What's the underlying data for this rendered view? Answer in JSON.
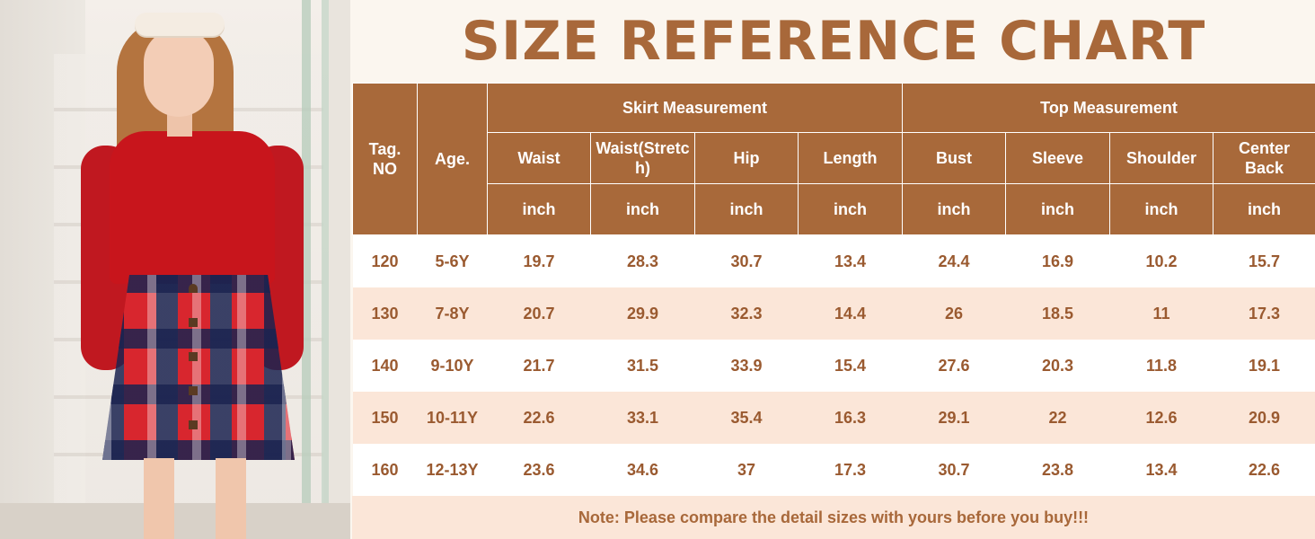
{
  "title": "SIZE REFERENCE CHART",
  "headers": {
    "tag": "Tag. NO",
    "age": "Age.",
    "skirt_group": "Skirt Measurement",
    "top_group": "Top Measurement",
    "waist": "Waist",
    "waist_stretch": "Waist(Stretch)",
    "hip": "Hip",
    "length": "Length",
    "bust": "Bust",
    "sleeve": "Sleeve",
    "shoulder": "Shoulder",
    "center_back": "Center Back",
    "unit": "inch"
  },
  "rows": [
    {
      "tag": "120",
      "age": "5-6Y",
      "waist": "19.7",
      "waist_stretch": "28.3",
      "hip": "30.7",
      "length": "13.4",
      "bust": "24.4",
      "sleeve": "16.9",
      "shoulder": "10.2",
      "center_back": "15.7"
    },
    {
      "tag": "130",
      "age": "7-8Y",
      "waist": "20.7",
      "waist_stretch": "29.9",
      "hip": "32.3",
      "length": "14.4",
      "bust": "26",
      "sleeve": "18.5",
      "shoulder": "11",
      "center_back": "17.3"
    },
    {
      "tag": "140",
      "age": "9-10Y",
      "waist": "21.7",
      "waist_stretch": "31.5",
      "hip": "33.9",
      "length": "15.4",
      "bust": "27.6",
      "sleeve": "20.3",
      "shoulder": "11.8",
      "center_back": "19.1"
    },
    {
      "tag": "150",
      "age": "10-11Y",
      "waist": "22.6",
      "waist_stretch": "33.1",
      "hip": "35.4",
      "length": "16.3",
      "bust": "29.1",
      "sleeve": "22",
      "shoulder": "12.6",
      "center_back": "20.9"
    },
    {
      "tag": "160",
      "age": "12-13Y",
      "waist": "23.6",
      "waist_stretch": "34.6",
      "hip": "37",
      "length": "17.3",
      "bust": "30.7",
      "sleeve": "23.8",
      "shoulder": "13.4",
      "center_back": "22.6"
    }
  ],
  "note": "Note: Please compare the detail sizes with yours before you buy!!!",
  "colors": {
    "header_bg": "#a8693a",
    "title_text": "#a8683a",
    "stripe": "#fbe6d8"
  }
}
